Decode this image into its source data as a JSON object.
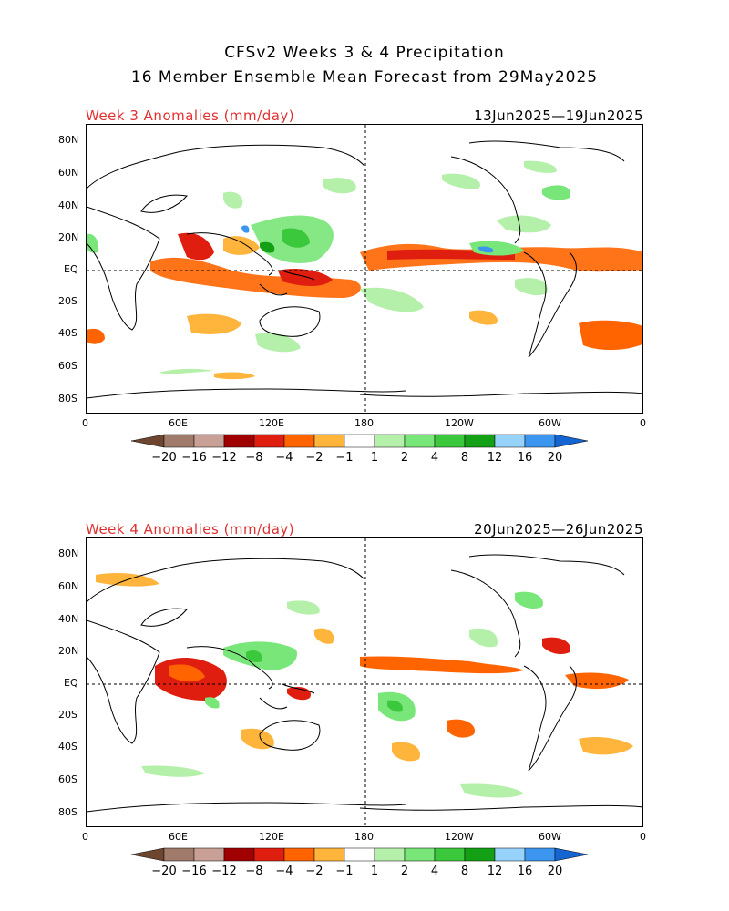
{
  "title_line1": "CFSv2 Weeks 3 & 4 Precipitation",
  "title_line2": "16 Member Ensemble Mean Forecast from 29May2025",
  "panels": [
    {
      "label": "Week 3 Anomalies (mm/day)",
      "dates": "13Jun2025—19Jun2025",
      "lat_labels": [
        "80N",
        "60N",
        "40N",
        "20N",
        "EQ",
        "20S",
        "40S",
        "60S",
        "80S"
      ],
      "lon_labels": [
        "0",
        "60E",
        "120E",
        "180",
        "120W",
        "60W",
        "0"
      ]
    },
    {
      "label": "Week 4 Anomalies (mm/day)",
      "dates": "20Jun2025—26Jun2025",
      "lat_labels": [
        "80N",
        "60N",
        "40N",
        "20N",
        "EQ",
        "20S",
        "40S",
        "60S",
        "80S"
      ],
      "lon_labels": [
        "0",
        "60E",
        "120E",
        "180",
        "120W",
        "60W",
        "0"
      ]
    }
  ],
  "colorbar": {
    "labels": [
      "−20",
      "−16",
      "−12",
      "−8",
      "−4",
      "−2",
      "−1",
      "1",
      "2",
      "4",
      "8",
      "12",
      "16",
      "20"
    ],
    "colors": [
      "#6e4630",
      "#a07a6a",
      "#c8a096",
      "#a00000",
      "#e01e10",
      "#ff6400",
      "#ffb43c",
      "#ffffff",
      "#b4f0aa",
      "#78e678",
      "#3cc83c",
      "#14a014",
      "#96d2fa",
      "#3c96f0",
      "#1464d2"
    ]
  }
}
